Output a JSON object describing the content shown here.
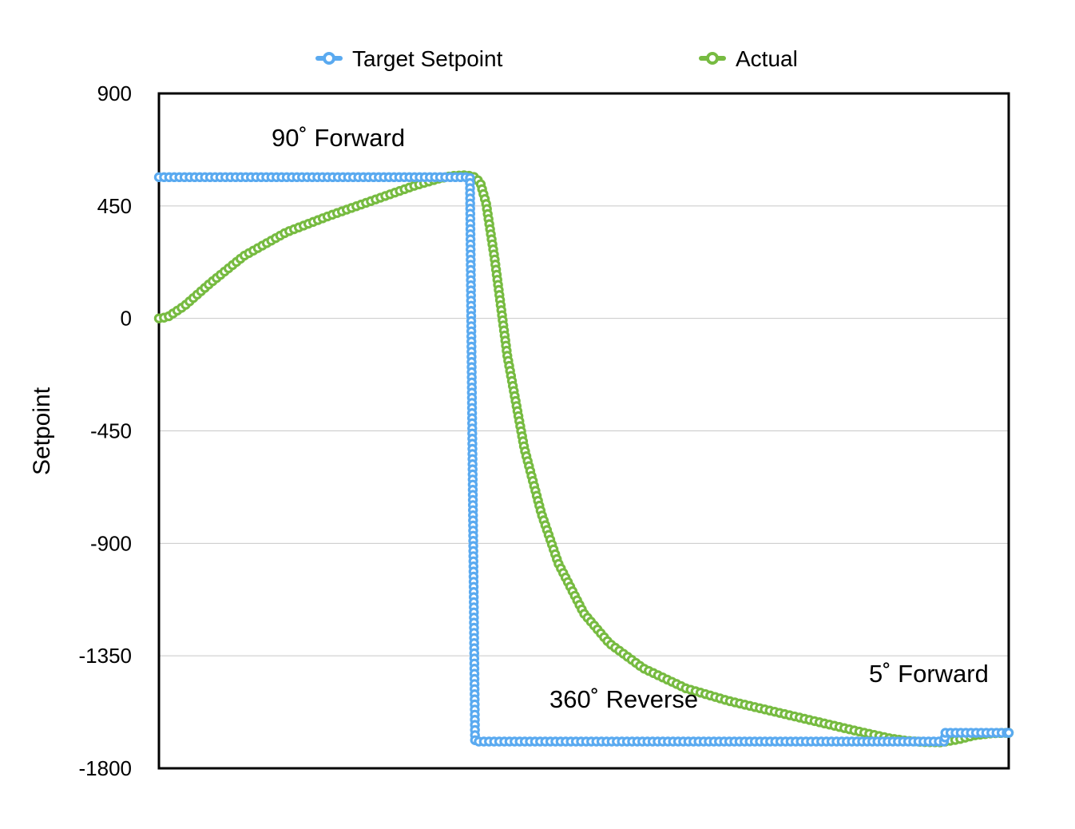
{
  "chart_data": {
    "type": "scatter",
    "title": "",
    "xlabel": "",
    "ylabel": "Setpoint",
    "ylim": [
      -1800,
      900
    ],
    "yticks": [
      "900",
      "450",
      "0",
      "-450",
      "-900",
      "-1350",
      "-1800"
    ],
    "ytick_values": [
      900,
      450,
      0,
      -450,
      -900,
      -1350,
      -1800
    ],
    "xlim": [
      0,
      100
    ],
    "grid": "horizontal",
    "legend_position": "top",
    "series": [
      {
        "name": "Target Setpoint",
        "color": "#5aaaf0",
        "x": [
          0,
          36.6,
          36.6,
          37.2,
          37.2,
          92.5,
          92.5,
          100
        ],
        "y": [
          565,
          565,
          565,
          -1693,
          -1693,
          -1693,
          -1658,
          -1658
        ]
      },
      {
        "name": "Actual",
        "color": "#77bb41",
        "x": [
          0,
          1,
          3,
          6,
          10,
          15,
          20,
          25,
          30,
          33,
          34.5,
          36,
          37,
          37.8,
          38.5,
          39.5,
          41,
          43,
          45,
          47,
          50,
          53,
          57,
          62,
          67,
          72,
          77,
          82,
          86,
          88,
          90,
          92,
          94,
          96,
          98,
          100
        ],
        "y": [
          0,
          5,
          50,
          140,
          250,
          345,
          410,
          470,
          530,
          560,
          570,
          573,
          568,
          545,
          460,
          240,
          -150,
          -520,
          -780,
          -980,
          -1180,
          -1300,
          -1400,
          -1480,
          -1530,
          -1570,
          -1610,
          -1650,
          -1680,
          -1690,
          -1695,
          -1696,
          -1685,
          -1668,
          -1660,
          -1658
        ]
      }
    ],
    "annotations": [
      "90˚ Forward",
      "360˚ Reverse",
      "5˚ Forward"
    ]
  }
}
